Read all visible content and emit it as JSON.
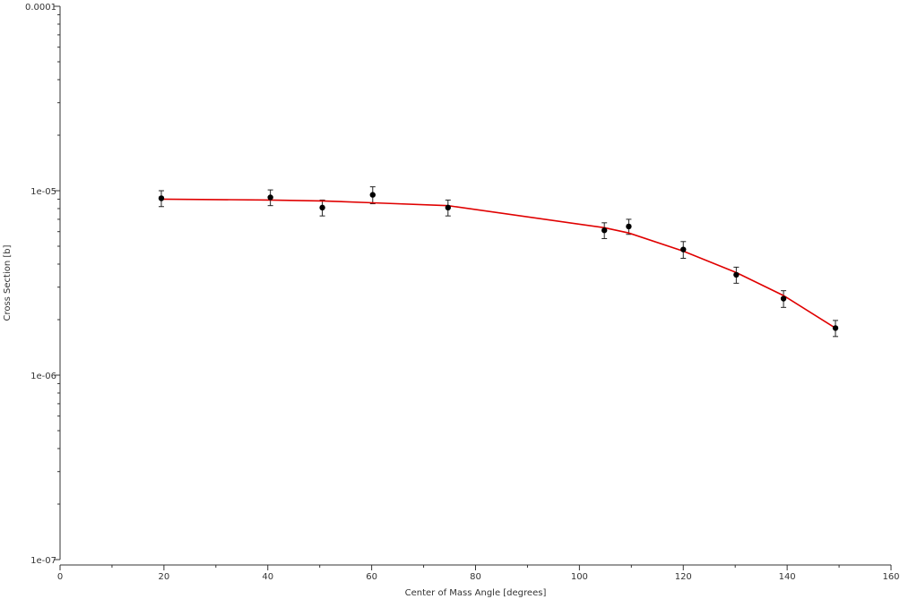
{
  "chart_data": {
    "type": "scatter",
    "title": "",
    "xlabel": "Center of Mass Angle [degrees]",
    "ylabel": "Cross Section [b]",
    "xlim": [
      0,
      160
    ],
    "ylim": [
      1e-07,
      0.0001
    ],
    "yscale": "log",
    "grid": false,
    "x_ticks": [
      0,
      20,
      40,
      60,
      80,
      100,
      120,
      140,
      160
    ],
    "x_tick_labels": [
      "0",
      "20",
      "40",
      "60",
      "80",
      "100",
      "120",
      "140",
      "160"
    ],
    "y_ticks": [
      1e-07,
      1e-06,
      1e-05,
      0.0001
    ],
    "y_tick_labels": [
      "1e-07",
      "1e-06",
      "1e-05",
      "0.0001"
    ],
    "colors": {
      "data": "#000000",
      "fit": "#e00000",
      "axis": "#333333"
    },
    "series": [
      {
        "kind": "data",
        "x": [
          19.5,
          40.5,
          50.5,
          60.2,
          74.7,
          104.8,
          109.5,
          120.0,
          130.2,
          139.3,
          149.3
        ],
        "y": [
          9.1e-06,
          9.2e-06,
          8.1e-06,
          9.5e-06,
          8.1e-06,
          6.1e-06,
          6.4e-06,
          4.8e-06,
          3.5e-06,
          2.6e-06,
          1.8e-06
        ],
        "yerr": [
          9e-07,
          9e-07,
          8e-07,
          1e-06,
          8e-07,
          6e-07,
          6e-07,
          5e-07,
          3.5e-07,
          2.7e-07,
          1.8e-07
        ]
      },
      {
        "kind": "fit",
        "x": [
          19.5,
          40.5,
          50.5,
          60.2,
          74.7,
          104.8,
          109.5,
          120.0,
          130.2,
          139.3,
          149.3
        ],
        "y": [
          9e-06,
          8.9e-06,
          8.8e-06,
          8.6e-06,
          8.3e-06,
          6.3e-06,
          5.9e-06,
          4.7e-06,
          3.6e-06,
          2.7e-06,
          1.8e-06
        ]
      }
    ]
  }
}
